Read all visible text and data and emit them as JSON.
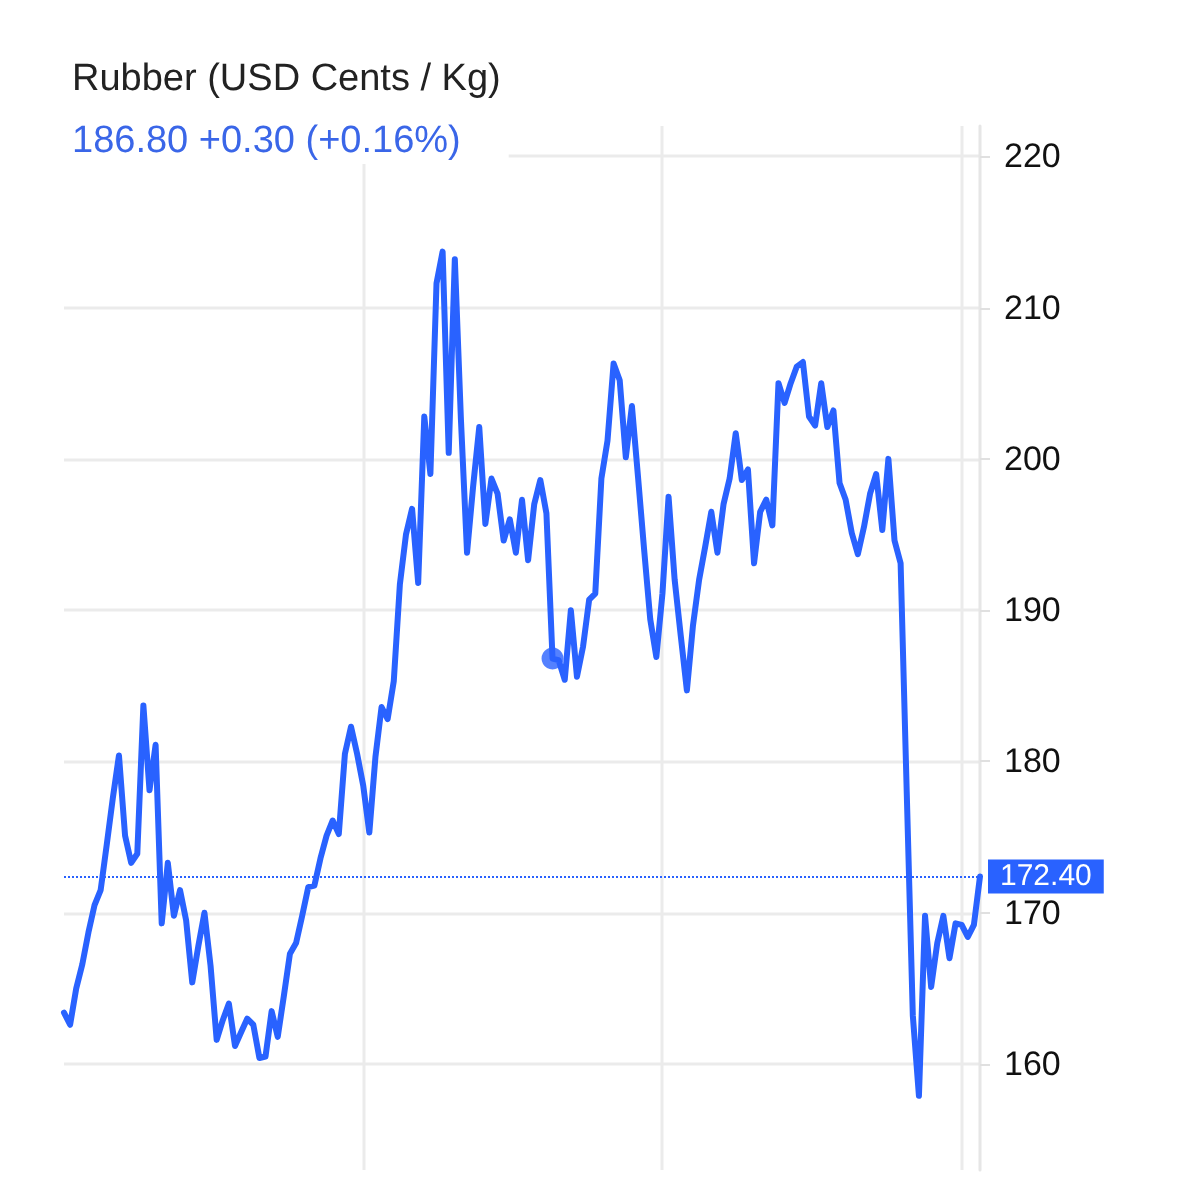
{
  "chart_data": {
    "type": "line",
    "title": "Rubber (USD Cents / Kg)",
    "subtitle": "186.80 +0.30 (+0.16%)",
    "categories": [
      null,
      null,
      null,
      null,
      null,
      null,
      null,
      null,
      null,
      null,
      null,
      null,
      null,
      null,
      null,
      null,
      null,
      null,
      null,
      null,
      null,
      null,
      null,
      null,
      null,
      null,
      null,
      null,
      null,
      null,
      null,
      null,
      null,
      null,
      null,
      null,
      null,
      null,
      null,
      null,
      null,
      null,
      null,
      null,
      null,
      null,
      null,
      null,
      null,
      null,
      null,
      null,
      null,
      null,
      null,
      null,
      null,
      null,
      null,
      null,
      null,
      null,
      null,
      null,
      null,
      null,
      null,
      null,
      null,
      null,
      null,
      null,
      null,
      null,
      null,
      null,
      null,
      null,
      null,
      null,
      null,
      null,
      null,
      null,
      null,
      null,
      null,
      null,
      null,
      null,
      null,
      null,
      null,
      null,
      null,
      null,
      null,
      null,
      null,
      null,
      null,
      null,
      null,
      null,
      null,
      null,
      null,
      null,
      null,
      null,
      null,
      null,
      null,
      null,
      null,
      null,
      null,
      null,
      null,
      null,
      null,
      null,
      null,
      null,
      null,
      null,
      null,
      null,
      null,
      null,
      null,
      null,
      null,
      null,
      null,
      null,
      null,
      null,
      null,
      null,
      null,
      null,
      null,
      null,
      null,
      null,
      null,
      null,
      null,
      null,
      null
    ],
    "series": [
      {
        "color": "#2962ff",
        "values": [
          163.4,
          162.6,
          165.0,
          166.6,
          168.7,
          170.5,
          171.5,
          174.5,
          177.6,
          180.4,
          175.1,
          173.3,
          173.9,
          183.7,
          178.1,
          181.1,
          169.3,
          173.3,
          169.8,
          171.5,
          169.5,
          165.4,
          167.8,
          170.0,
          166.5,
          161.6,
          162.9,
          164.0,
          161.2,
          162.1,
          163.0,
          162.6,
          160.4,
          160.5,
          163.5,
          161.8,
          164.5,
          167.3,
          168.0,
          169.8,
          171.7,
          171.8,
          173.6,
          175.1,
          176.1,
          175.2,
          180.5,
          182.3,
          180.5,
          178.4,
          175.3,
          180.3,
          183.6,
          182.8,
          185.3,
          191.7,
          195.0,
          196.7,
          191.8,
          202.8,
          199.0,
          211.6,
          213.7,
          200.4,
          213.2,
          202.6,
          193.8,
          198.2,
          202.1,
          195.7,
          198.7,
          197.7,
          194.6,
          196.0,
          193.8,
          197.3,
          193.3,
          197.0,
          198.6,
          196.4,
          186.8,
          186.7,
          185.4,
          190.0,
          185.6,
          187.6,
          190.7,
          191.1,
          198.7,
          201.2,
          206.3,
          205.2,
          200.1,
          203.5,
          198.8,
          194.0,
          189.4,
          186.9,
          191.1,
          197.5,
          192.0,
          188.3,
          184.7,
          189.0,
          192.0,
          194.2,
          196.5,
          193.8,
          197.0,
          198.7,
          201.7,
          198.6,
          199.3,
          193.1,
          196.5,
          197.3,
          195.6,
          205.0,
          203.7,
          205.0,
          206.1,
          206.4,
          202.8,
          202.2,
          205.0,
          202.1,
          203.2,
          198.4,
          197.3,
          195.1,
          193.7,
          195.5,
          197.7,
          199.0,
          195.3,
          200.0,
          194.6,
          193.1,
          178.0,
          163.2,
          157.9,
          169.8,
          165.1,
          168.0,
          169.8,
          167.0,
          169.3,
          169.2,
          168.4,
          169.2,
          172.4
        ]
      },
      {
        "type": "scatter",
        "color": "#2962ff",
        "marker": "circle",
        "values": [
          null,
          null,
          null,
          null,
          null,
          null,
          null,
          null,
          null,
          null,
          null,
          null,
          null,
          null,
          null,
          null,
          null,
          null,
          null,
          null,
          null,
          null,
          null,
          null,
          null,
          null,
          null,
          null,
          null,
          null,
          null,
          null,
          null,
          null,
          null,
          null,
          null,
          null,
          null,
          null,
          null,
          null,
          null,
          null,
          null,
          null,
          null,
          null,
          null,
          null,
          null,
          null,
          null,
          null,
          null,
          null,
          null,
          null,
          null,
          null,
          null,
          null,
          null,
          null,
          null,
          null,
          null,
          null,
          null,
          null,
          null,
          null,
          null,
          null,
          null,
          null,
          null,
          null,
          null,
          null,
          186.8,
          null,
          null,
          null,
          null,
          null,
          null,
          null,
          null,
          null,
          null,
          null,
          null,
          null,
          null,
          null,
          null,
          null,
          null,
          null,
          null,
          null,
          null,
          null,
          null,
          null,
          null,
          null,
          null,
          null,
          null,
          null,
          null,
          null,
          null,
          null,
          null,
          null,
          null,
          null,
          null,
          null,
          null,
          null,
          null,
          null,
          null,
          null,
          null,
          null,
          null,
          null,
          null,
          null,
          null,
          null,
          null,
          null,
          null,
          null,
          null,
          null,
          null,
          null,
          null,
          null,
          null,
          null,
          null,
          null,
          null
        ]
      }
    ],
    "ylim": [
      153,
      222
    ],
    "yticks": [
      160,
      170,
      180,
      190,
      200,
      210,
      220
    ],
    "grid": true,
    "tick_labels": "y",
    "ref_lines": [
      {
        "axis": "y",
        "value": 172.4,
        "label": "172.40",
        "color": "#2962ff",
        "line_style": "dotted"
      }
    ]
  }
}
